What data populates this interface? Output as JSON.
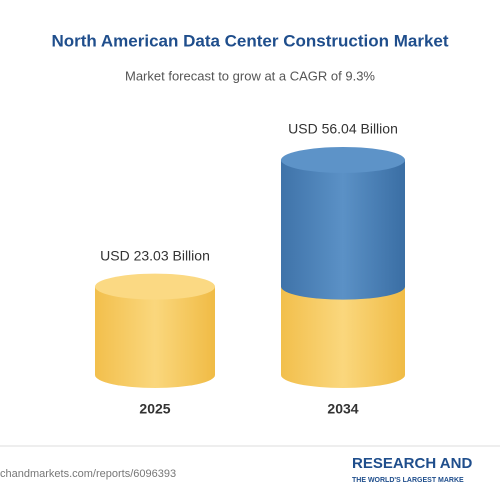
{
  "chart_data": {
    "type": "cylinder",
    "title": "North American Data Center Construction Market",
    "subtitle": "Market forecast to grow at a CAGR of 9.3%",
    "categories": [
      "2025",
      "2034"
    ],
    "values": [
      23.03,
      56.04
    ],
    "value_labels": [
      "USD 23.03 Billion",
      "USD 56.04 Billion"
    ],
    "base_color": "#f6c95c",
    "growth_color": "#4b80b6",
    "footer": "chandmarkets.com/reports/6096393",
    "logo": "RESEARCH AND",
    "logo_tagline": "THE WORLD'S LARGEST MARKE"
  }
}
